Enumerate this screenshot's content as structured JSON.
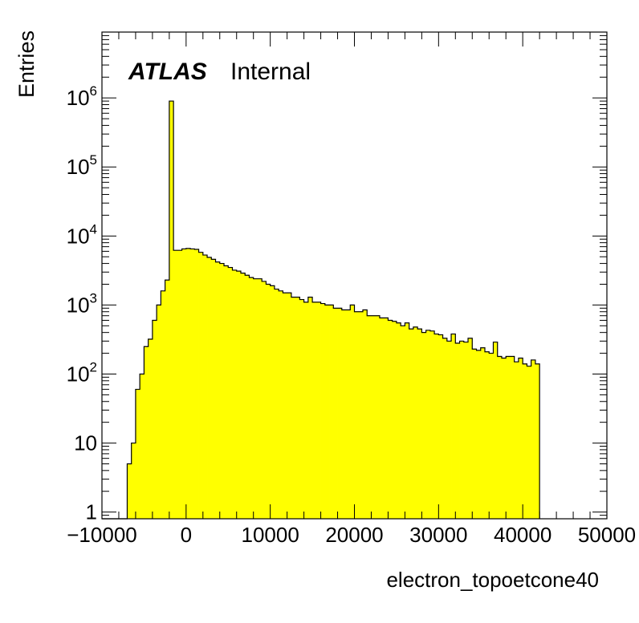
{
  "chart_data": {
    "type": "bar",
    "histogram": true,
    "label": "ATLAS",
    "label_suffix": "Internal",
    "xlabel": "electron_topoetcone40",
    "ylabel": "Entries",
    "xlim": [
      -10000,
      50000
    ],
    "ylim": [
      0.8,
      9000000
    ],
    "ylog": true,
    "fill_color": "#ffff00",
    "line_color": "#000000",
    "x_ticks": [
      -10000,
      0,
      10000,
      20000,
      30000,
      40000,
      50000
    ],
    "x_tick_labels": [
      "−10000",
      "0",
      "10000",
      "20000",
      "30000",
      "40000",
      "50000"
    ],
    "y_ticks": [
      {
        "value": 1,
        "base": "1",
        "exp": ""
      },
      {
        "value": 10,
        "base": "10",
        "exp": ""
      },
      {
        "value": 100,
        "base": "10",
        "exp": "2"
      },
      {
        "value": 1000,
        "base": "10",
        "exp": "3"
      },
      {
        "value": 10000,
        "base": "10",
        "exp": "4"
      },
      {
        "value": 100000,
        "base": "10",
        "exp": "5"
      },
      {
        "value": 1000000,
        "base": "10",
        "exp": "6"
      }
    ],
    "bin_start": -10000,
    "bin_width": 500,
    "values": [
      0,
      0,
      0,
      0,
      0,
      0,
      5,
      10,
      60,
      100,
      250,
      320,
      600,
      1000,
      1600,
      2300,
      900000,
      6200,
      6200,
      6500,
      6600,
      6500,
      6400,
      5800,
      5300,
      4900,
      4600,
      4200,
      4000,
      3700,
      3500,
      3200,
      3100,
      2900,
      2700,
      2500,
      2400,
      2400,
      2200,
      2000,
      1900,
      1700,
      1600,
      1500,
      1500,
      1300,
      1300,
      1200,
      1100,
      1300,
      1100,
      1100,
      1050,
      1000,
      1000,
      900,
      900,
      850,
      850,
      1000,
      800,
      800,
      850,
      700,
      700,
      700,
      650,
      650,
      600,
      580,
      550,
      500,
      550,
      450,
      480,
      450,
      400,
      430,
      420,
      380,
      370,
      330,
      300,
      380,
      280,
      300,
      290,
      330,
      230,
      220,
      240,
      210,
      200,
      290,
      180,
      170,
      180,
      180,
      150,
      170,
      140,
      130,
      160,
      140
    ],
    "grid": false,
    "legend": "none"
  }
}
